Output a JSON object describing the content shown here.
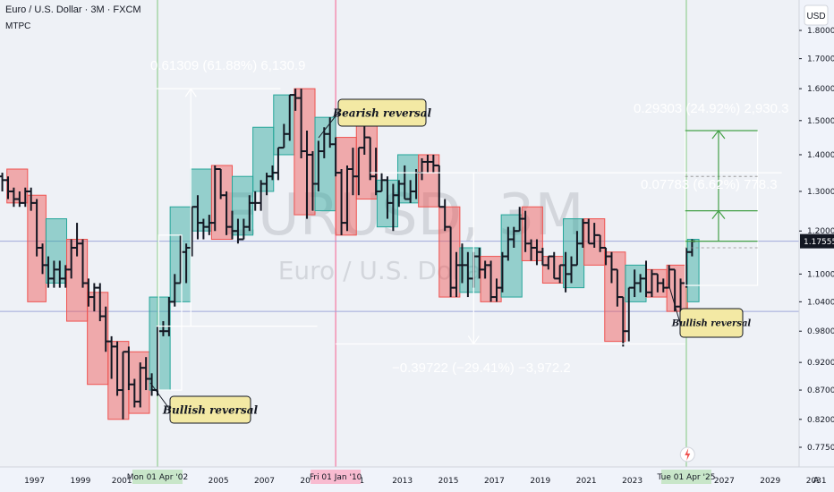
{
  "header": {
    "title": "Euro / U.S. Dollar · 3M · FXCM",
    "indicator": "MTPC",
    "currency_badge": "USD"
  },
  "watermark": {
    "symbol": "EURUSD, 3M",
    "name": "Euro / U.S. Dollar"
  },
  "colors": {
    "background": "#eef1f6",
    "bull_box": "#26a69a",
    "bear_box": "#ef5350",
    "bars": "#131722",
    "green_line": "#a5d6a7",
    "red_line": "#f48fb1",
    "price_tag": "#131722",
    "callout_bg": "#f3e9a4",
    "measure_line": "#ffffff",
    "horizontal_line": "#9fa8da"
  },
  "chart_data": {
    "type": "ohlc",
    "scale": "log",
    "ylim": [
      0.75,
      1.9
    ],
    "y_ticks": [
      "1.80000",
      "1.70000",
      "1.60000",
      "1.50000",
      "1.40000",
      "1.30000",
      "1.20000",
      "1.10000",
      "1.04000",
      "0.98000",
      "0.92000",
      "0.87000",
      "0.82000",
      "0.77500"
    ],
    "x_ticks": [
      "1997",
      "1999",
      "2001",
      "2005",
      "2007",
      "2009",
      "2011",
      "2013",
      "2015",
      "2017",
      "2019",
      "2021",
      "2023",
      "2027",
      "2029",
      "2031"
    ],
    "x_range": [
      1995.4,
      2031.4
    ],
    "current_price": "1.17555",
    "horizontal_lines": [
      1.1755,
      1.02
    ],
    "vertical_markers": [
      {
        "date": 2002.25,
        "label": "Mon 01 Apr '02",
        "color": "green"
      },
      {
        "date": 2010.0,
        "label": "Fri 01 Jan '10",
        "color": "red"
      },
      {
        "date": 2025.25,
        "label": "Tue 01 Apr '25",
        "color": "green"
      }
    ],
    "bars": [
      [
        1995.5,
        1.34,
        1.35,
        1.3,
        1.33
      ],
      [
        1995.75,
        1.33,
        1.34,
        1.28,
        1.3
      ],
      [
        1996.0,
        1.3,
        1.31,
        1.26,
        1.28
      ],
      [
        1996.25,
        1.28,
        1.3,
        1.26,
        1.27
      ],
      [
        1996.5,
        1.27,
        1.31,
        1.26,
        1.3
      ],
      [
        1996.75,
        1.3,
        1.31,
        1.25,
        1.27
      ],
      [
        1997.0,
        1.27,
        1.28,
        1.14,
        1.16
      ],
      [
        1997.25,
        1.16,
        1.17,
        1.1,
        1.12
      ],
      [
        1997.5,
        1.12,
        1.14,
        1.07,
        1.09
      ],
      [
        1997.75,
        1.09,
        1.13,
        1.07,
        1.11
      ],
      [
        1998.0,
        1.11,
        1.13,
        1.07,
        1.09
      ],
      [
        1998.25,
        1.09,
        1.12,
        1.07,
        1.11
      ],
      [
        1998.5,
        1.11,
        1.18,
        1.09,
        1.16
      ],
      [
        1998.75,
        1.16,
        1.22,
        1.14,
        1.17
      ],
      [
        1999.0,
        1.17,
        1.18,
        1.07,
        1.08
      ],
      [
        1999.25,
        1.08,
        1.09,
        1.03,
        1.05
      ],
      [
        1999.5,
        1.05,
        1.08,
        1.02,
        1.07
      ],
      [
        1999.75,
        1.07,
        1.08,
        1.0,
        1.01
      ],
      [
        2000.0,
        1.01,
        1.03,
        0.94,
        0.96
      ],
      [
        2000.25,
        0.96,
        0.97,
        0.89,
        0.95
      ],
      [
        2000.5,
        0.95,
        0.96,
        0.86,
        0.87
      ],
      [
        2000.75,
        0.87,
        0.94,
        0.82,
        0.94
      ],
      [
        2001.0,
        0.94,
        0.95,
        0.87,
        0.88
      ],
      [
        2001.25,
        0.88,
        0.89,
        0.84,
        0.85
      ],
      [
        2001.5,
        0.85,
        0.92,
        0.84,
        0.91
      ],
      [
        2001.75,
        0.91,
        0.93,
        0.87,
        0.89
      ],
      [
        2002.0,
        0.89,
        0.9,
        0.86,
        0.87
      ],
      [
        2002.25,
        0.87,
        0.99,
        0.86,
        0.98
      ],
      [
        2002.5,
        0.98,
        1.0,
        0.97,
        0.98
      ],
      [
        2002.75,
        0.98,
        1.05,
        0.97,
        1.04
      ],
      [
        2003.0,
        1.04,
        1.1,
        1.03,
        1.08
      ],
      [
        2003.25,
        1.08,
        1.19,
        1.08,
        1.15
      ],
      [
        2003.5,
        1.15,
        1.17,
        1.08,
        1.16
      ],
      [
        2003.75,
        1.16,
        1.26,
        1.14,
        1.26
      ],
      [
        2004.0,
        1.26,
        1.29,
        1.18,
        1.22
      ],
      [
        2004.25,
        1.22,
        1.23,
        1.18,
        1.21
      ],
      [
        2004.5,
        1.21,
        1.24,
        1.19,
        1.22
      ],
      [
        2004.75,
        1.22,
        1.37,
        1.2,
        1.36
      ],
      [
        2005.0,
        1.36,
        1.36,
        1.28,
        1.29
      ],
      [
        2005.25,
        1.29,
        1.3,
        1.19,
        1.21
      ],
      [
        2005.5,
        1.21,
        1.25,
        1.18,
        1.2
      ],
      [
        2005.75,
        1.2,
        1.23,
        1.17,
        1.18
      ],
      [
        2006.0,
        1.18,
        1.23,
        1.18,
        1.21
      ],
      [
        2006.25,
        1.21,
        1.29,
        1.2,
        1.27
      ],
      [
        2006.5,
        1.27,
        1.3,
        1.25,
        1.27
      ],
      [
        2006.75,
        1.27,
        1.33,
        1.25,
        1.32
      ],
      [
        2007.0,
        1.32,
        1.35,
        1.29,
        1.34
      ],
      [
        2007.25,
        1.34,
        1.37,
        1.33,
        1.35
      ],
      [
        2007.5,
        1.35,
        1.42,
        1.33,
        1.42
      ],
      [
        2007.75,
        1.42,
        1.49,
        1.42,
        1.46
      ],
      [
        2008.0,
        1.46,
        1.58,
        1.44,
        1.58
      ],
      [
        2008.25,
        1.58,
        1.6,
        1.53,
        1.57
      ],
      [
        2008.5,
        1.57,
        1.6,
        1.39,
        1.41
      ],
      [
        2008.75,
        1.41,
        1.47,
        1.23,
        1.4
      ],
      [
        2009.0,
        1.4,
        1.41,
        1.25,
        1.32
      ],
      [
        2009.25,
        1.32,
        1.44,
        1.3,
        1.41
      ],
      [
        2009.5,
        1.41,
        1.48,
        1.39,
        1.46
      ],
      [
        2009.75,
        1.46,
        1.51,
        1.42,
        1.43
      ],
      [
        2010.0,
        1.43,
        1.45,
        1.34,
        1.35
      ],
      [
        2010.25,
        1.35,
        1.36,
        1.19,
        1.22
      ],
      [
        2010.5,
        1.22,
        1.37,
        1.2,
        1.36
      ],
      [
        2010.75,
        1.36,
        1.42,
        1.29,
        1.34
      ],
      [
        2011.0,
        1.34,
        1.42,
        1.29,
        1.42
      ],
      [
        2011.25,
        1.42,
        1.49,
        1.4,
        1.45
      ],
      [
        2011.5,
        1.45,
        1.45,
        1.33,
        1.34
      ],
      [
        2011.75,
        1.34,
        1.42,
        1.29,
        1.3
      ],
      [
        2012.0,
        1.3,
        1.35,
        1.3,
        1.33
      ],
      [
        2012.25,
        1.33,
        1.34,
        1.23,
        1.27
      ],
      [
        2012.5,
        1.27,
        1.32,
        1.2,
        1.29
      ],
      [
        2012.75,
        1.29,
        1.33,
        1.26,
        1.32
      ],
      [
        2013.0,
        1.32,
        1.37,
        1.28,
        1.28
      ],
      [
        2013.25,
        1.28,
        1.33,
        1.27,
        1.3
      ],
      [
        2013.5,
        1.3,
        1.36,
        1.28,
        1.35
      ],
      [
        2013.75,
        1.35,
        1.39,
        1.33,
        1.38
      ],
      [
        2014.0,
        1.38,
        1.4,
        1.35,
        1.38
      ],
      [
        2014.25,
        1.38,
        1.4,
        1.35,
        1.37
      ],
      [
        2014.5,
        1.37,
        1.37,
        1.26,
        1.26
      ],
      [
        2014.75,
        1.26,
        1.28,
        1.2,
        1.21
      ],
      [
        2015.0,
        1.21,
        1.21,
        1.05,
        1.07
      ],
      [
        2015.25,
        1.07,
        1.15,
        1.05,
        1.12
      ],
      [
        2015.5,
        1.12,
        1.17,
        1.08,
        1.12
      ],
      [
        2015.75,
        1.12,
        1.15,
        1.05,
        1.09
      ],
      [
        2016.0,
        1.09,
        1.15,
        1.07,
        1.14
      ],
      [
        2016.25,
        1.14,
        1.16,
        1.09,
        1.11
      ],
      [
        2016.5,
        1.11,
        1.13,
        1.09,
        1.12
      ],
      [
        2016.75,
        1.12,
        1.13,
        1.04,
        1.05
      ],
      [
        2017.0,
        1.05,
        1.09,
        1.04,
        1.07
      ],
      [
        2017.25,
        1.07,
        1.15,
        1.06,
        1.14
      ],
      [
        2017.5,
        1.14,
        1.21,
        1.13,
        1.18
      ],
      [
        2017.75,
        1.18,
        1.21,
        1.16,
        1.2
      ],
      [
        2018.0,
        1.2,
        1.26,
        1.2,
        1.23
      ],
      [
        2018.25,
        1.23,
        1.25,
        1.15,
        1.17
      ],
      [
        2018.5,
        1.17,
        1.18,
        1.13,
        1.16
      ],
      [
        2018.75,
        1.16,
        1.18,
        1.12,
        1.15
      ],
      [
        2019.0,
        1.15,
        1.16,
        1.12,
        1.12
      ],
      [
        2019.25,
        1.12,
        1.14,
        1.11,
        1.14
      ],
      [
        2019.5,
        1.14,
        1.15,
        1.09,
        1.09
      ],
      [
        2019.75,
        1.09,
        1.12,
        1.08,
        1.12
      ],
      [
        2020.0,
        1.12,
        1.15,
        1.06,
        1.1
      ],
      [
        2020.25,
        1.1,
        1.14,
        1.08,
        1.12
      ],
      [
        2020.5,
        1.12,
        1.2,
        1.12,
        1.17
      ],
      [
        2020.75,
        1.17,
        1.23,
        1.16,
        1.22
      ],
      [
        2021.0,
        1.22,
        1.23,
        1.17,
        1.17
      ],
      [
        2021.25,
        1.17,
        1.22,
        1.16,
        1.19
      ],
      [
        2021.5,
        1.19,
        1.19,
        1.15,
        1.16
      ],
      [
        2021.75,
        1.16,
        1.16,
        1.12,
        1.14
      ],
      [
        2022.0,
        1.14,
        1.15,
        1.08,
        1.11
      ],
      [
        2022.25,
        1.11,
        1.11,
        1.03,
        1.05
      ],
      [
        2022.5,
        1.05,
        1.05,
        0.95,
        0.98
      ],
      [
        2022.75,
        0.98,
        1.07,
        0.96,
        1.07
      ],
      [
        2023.0,
        1.07,
        1.11,
        1.05,
        1.08
      ],
      [
        2023.25,
        1.08,
        1.1,
        1.06,
        1.09
      ],
      [
        2023.5,
        1.09,
        1.13,
        1.05,
        1.06
      ],
      [
        2023.75,
        1.06,
        1.11,
        1.05,
        1.1
      ],
      [
        2024.0,
        1.1,
        1.1,
        1.06,
        1.08
      ],
      [
        2024.25,
        1.08,
        1.09,
        1.06,
        1.07
      ],
      [
        2024.5,
        1.07,
        1.12,
        1.07,
        1.11
      ],
      [
        2024.75,
        1.11,
        1.11,
        1.02,
        1.03
      ],
      [
        2025.0,
        1.03,
        1.09,
        1.01,
        1.08
      ],
      [
        2025.25,
        1.08,
        1.16,
        1.07,
        1.15
      ],
      [
        2025.5,
        1.15,
        1.18,
        1.14,
        1.1755
      ]
    ],
    "boxes": [
      {
        "x0": 1995.7,
        "x1": 1996.6,
        "y0": 1.36,
        "y1": 1.27,
        "kind": "bear"
      },
      {
        "x0": 1996.6,
        "x1": 1997.4,
        "y0": 1.29,
        "y1": 1.04,
        "kind": "bear"
      },
      {
        "x0": 1997.4,
        "x1": 1998.3,
        "y0": 1.08,
        "y1": 1.23,
        "kind": "bull"
      },
      {
        "x0": 1998.3,
        "x1": 1999.2,
        "y0": 1.18,
        "y1": 1.0,
        "kind": "bear"
      },
      {
        "x0": 1999.2,
        "x1": 2000.1,
        "y0": 1.06,
        "y1": 0.88,
        "kind": "bear"
      },
      {
        "x0": 2000.1,
        "x1": 2001.0,
        "y0": 0.96,
        "y1": 0.82,
        "kind": "bear"
      },
      {
        "x0": 2001.0,
        "x1": 2001.9,
        "y0": 0.94,
        "y1": 0.83,
        "kind": "bear"
      },
      {
        "x0": 2001.9,
        "x1": 2002.8,
        "y0": 0.87,
        "y1": 1.05,
        "kind": "bull"
      },
      {
        "x0": 2002.8,
        "x1": 2003.7,
        "y0": 1.04,
        "y1": 1.26,
        "kind": "bull"
      },
      {
        "x0": 2003.7,
        "x1": 2004.6,
        "y0": 1.2,
        "y1": 1.36,
        "kind": "bull"
      },
      {
        "x0": 2004.6,
        "x1": 2005.5,
        "y0": 1.37,
        "y1": 1.18,
        "kind": "bear"
      },
      {
        "x0": 2005.5,
        "x1": 2006.4,
        "y0": 1.19,
        "y1": 1.34,
        "kind": "bull"
      },
      {
        "x0": 2006.4,
        "x1": 2007.3,
        "y0": 1.3,
        "y1": 1.48,
        "kind": "bull"
      },
      {
        "x0": 2007.3,
        "x1": 2008.2,
        "y0": 1.4,
        "y1": 1.58,
        "kind": "bull"
      },
      {
        "x0": 2008.2,
        "x1": 2009.1,
        "y0": 1.6,
        "y1": 1.24,
        "kind": "bear"
      },
      {
        "x0": 2009.1,
        "x1": 2010.0,
        "y0": 1.25,
        "y1": 1.51,
        "kind": "bull"
      },
      {
        "x0": 2010.0,
        "x1": 2010.9,
        "y0": 1.45,
        "y1": 1.19,
        "kind": "bear"
      },
      {
        "x0": 2010.9,
        "x1": 2011.8,
        "y0": 1.49,
        "y1": 1.28,
        "kind": "bear"
      },
      {
        "x0": 2011.8,
        "x1": 2012.7,
        "y0": 1.21,
        "y1": 1.33,
        "kind": "bull"
      },
      {
        "x0": 2012.7,
        "x1": 2013.6,
        "y0": 1.27,
        "y1": 1.4,
        "kind": "bull"
      },
      {
        "x0": 2013.6,
        "x1": 2014.5,
        "y0": 1.4,
        "y1": 1.26,
        "kind": "bear"
      },
      {
        "x0": 2014.5,
        "x1": 2015.4,
        "y0": 1.26,
        "y1": 1.05,
        "kind": "bear"
      },
      {
        "x0": 2015.4,
        "x1": 2016.3,
        "y0": 1.06,
        "y1": 1.16,
        "kind": "bull"
      },
      {
        "x0": 2016.3,
        "x1": 2017.2,
        "y0": 1.14,
        "y1": 1.04,
        "kind": "bear"
      },
      {
        "x0": 2017.2,
        "x1": 2018.1,
        "y0": 1.05,
        "y1": 1.24,
        "kind": "bull"
      },
      {
        "x0": 2018.1,
        "x1": 2019.0,
        "y0": 1.26,
        "y1": 1.13,
        "kind": "bear"
      },
      {
        "x0": 2019.0,
        "x1": 2019.9,
        "y0": 1.14,
        "y1": 1.08,
        "kind": "bear"
      },
      {
        "x0": 2019.9,
        "x1": 2020.8,
        "y0": 1.07,
        "y1": 1.23,
        "kind": "bull"
      },
      {
        "x0": 2020.8,
        "x1": 2021.7,
        "y0": 1.23,
        "y1": 1.12,
        "kind": "bear"
      },
      {
        "x0": 2021.7,
        "x1": 2022.6,
        "y0": 1.15,
        "y1": 0.96,
        "kind": "bear"
      },
      {
        "x0": 2022.6,
        "x1": 2023.5,
        "y0": 1.04,
        "y1": 1.12,
        "kind": "bull"
      },
      {
        "x0": 2023.5,
        "x1": 2024.4,
        "y0": 1.11,
        "y1": 1.05,
        "kind": "bear"
      },
      {
        "x0": 2024.4,
        "x1": 2025.3,
        "y0": 1.12,
        "y1": 1.02,
        "kind": "bear"
      },
      {
        "x0": 2025.3,
        "x1": 2025.8,
        "y0": 1.04,
        "y1": 1.18,
        "kind": "bull"
      }
    ],
    "measurements": [
      {
        "text": "0.61309 (61.88%) 6,130.9"
      },
      {
        "text": "−0.39722 (−29.41%) −3,972.2"
      },
      {
        "text": "0.29303 (24.92%) 2,930.3"
      },
      {
        "text": "0.07783 (6.62%) 778.3"
      }
    ],
    "annotations": [
      {
        "text": "Bearish reversal"
      },
      {
        "text": "Bullish reversal"
      },
      {
        "text": "Bullish reversal"
      }
    ]
  }
}
